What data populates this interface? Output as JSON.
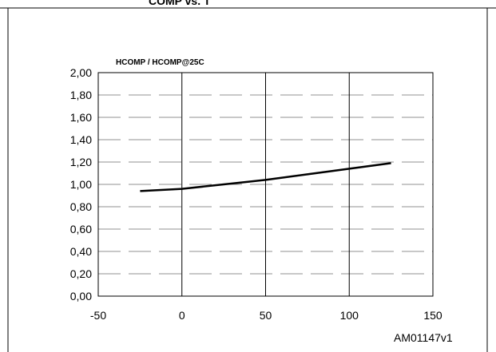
{
  "header_fragment": "COMP   vs. T",
  "figure_id": "AM01147v1",
  "chart_data": {
    "type": "line",
    "title": "HCOMP / HCOMP@25C",
    "xlabel": "",
    "ylabel": "",
    "xlim": [
      -50,
      150
    ],
    "ylim": [
      0,
      2
    ],
    "x_ticks": [
      "-50",
      "0",
      "50",
      "100",
      "150"
    ],
    "y_ticks": [
      "0,00",
      "0,20",
      "0,40",
      "0,60",
      "0,80",
      "1,00",
      "1,20",
      "1,40",
      "1,60",
      "1,80",
      "2,00"
    ],
    "grid": "vertical solid, horizontal dashed",
    "series": [
      {
        "x": [
          -25,
          0,
          25,
          50,
          75,
          100,
          125
        ],
        "y": [
          0.94,
          0.96,
          1.0,
          1.04,
          1.09,
          1.14,
          1.19
        ],
        "color": "#000000"
      }
    ]
  }
}
